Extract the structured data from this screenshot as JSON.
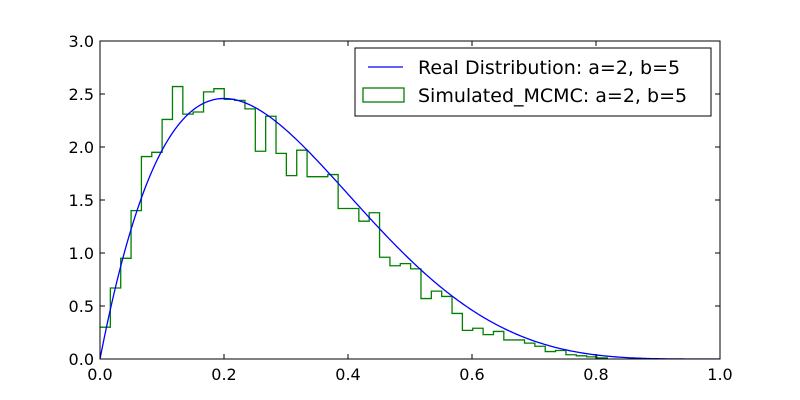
{
  "chart_data": {
    "type": "line",
    "title": "",
    "xlabel": "",
    "ylabel": "",
    "xlim": [
      0.0,
      1.0
    ],
    "ylim": [
      0.0,
      3.0
    ],
    "xticks": [
      "0.0",
      "0.2",
      "0.4",
      "0.6",
      "0.8",
      "1.0"
    ],
    "yticks": [
      "0.0",
      "0.5",
      "1.0",
      "1.5",
      "2.0",
      "2.5",
      "3.0"
    ],
    "grid": false,
    "legend_position": "upper-right",
    "series": [
      {
        "name": "Real Distribution: a=2, b=5",
        "kind": "line",
        "color": "#0000ff",
        "function": "beta_pdf",
        "a": 2,
        "b": 5
      },
      {
        "name": "Simulated_MCMC: a=2, b=5",
        "kind": "step-histogram",
        "color": "#008000",
        "bin_start": 0.0,
        "bin_width": 0.0167,
        "values": [
          0.3,
          0.67,
          0.95,
          1.4,
          1.91,
          1.95,
          2.26,
          2.57,
          2.31,
          2.33,
          2.52,
          2.55,
          2.45,
          2.44,
          2.36,
          1.96,
          2.29,
          1.94,
          1.73,
          1.97,
          1.72,
          1.72,
          1.74,
          1.42,
          1.42,
          1.3,
          1.38,
          0.96,
          0.88,
          0.9,
          0.85,
          0.57,
          0.64,
          0.59,
          0.43,
          0.27,
          0.29,
          0.23,
          0.26,
          0.18,
          0.18,
          0.15,
          0.12,
          0.07,
          0.08,
          0.04,
          0.03,
          0.02,
          0.01
        ]
      }
    ]
  }
}
